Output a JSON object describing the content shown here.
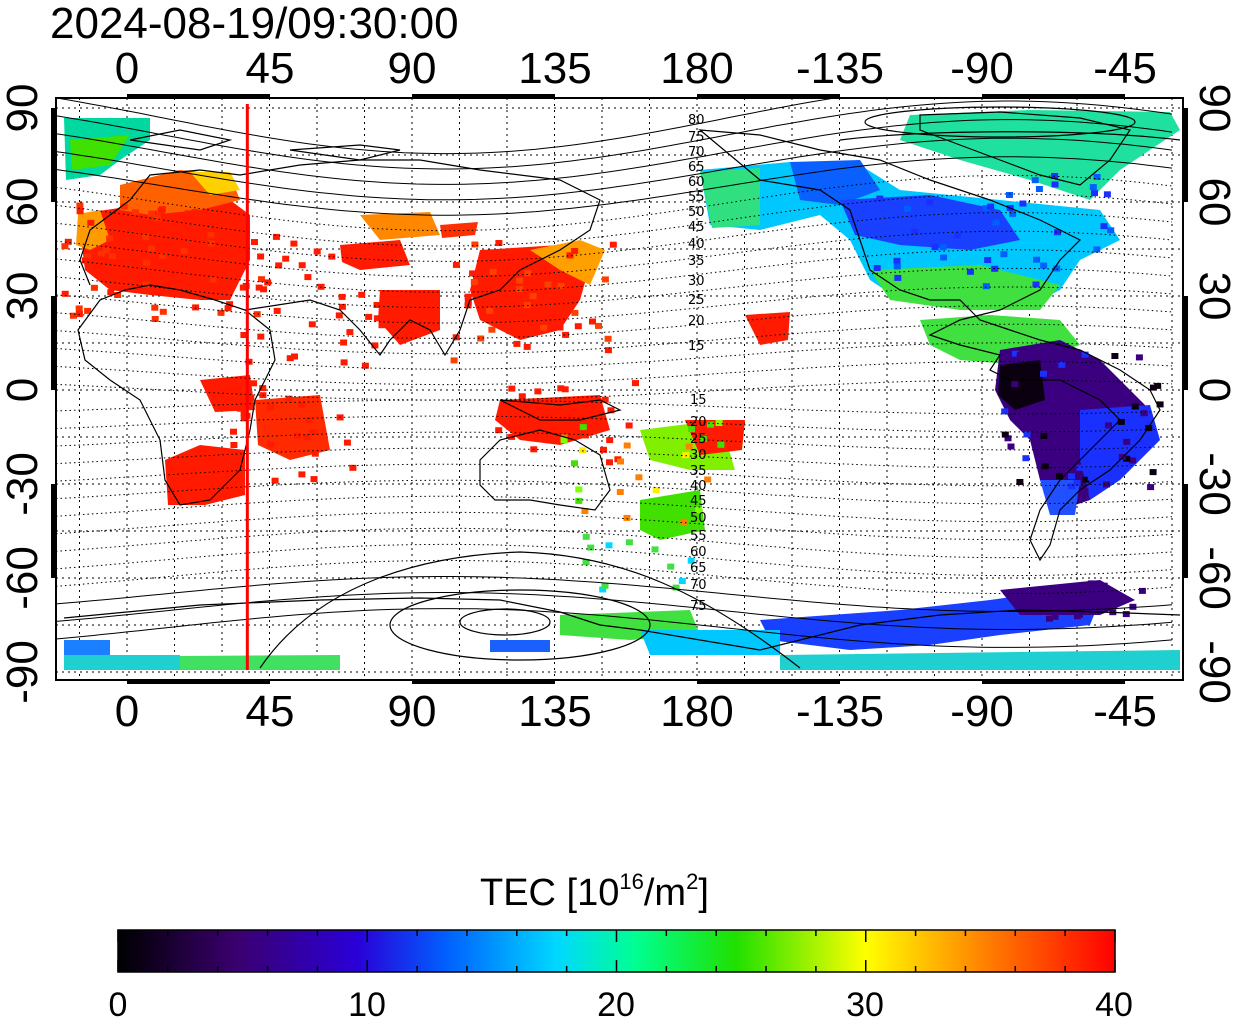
{
  "map": {
    "timestamp": "2024-08-19/09:30:00",
    "top_lon_labels": [
      "0",
      "45",
      "90",
      "135",
      "180",
      "-135",
      "-90",
      "-45"
    ],
    "bottom_lon_labels": [
      "0",
      "45",
      "90",
      "135",
      "180",
      "-135",
      "-90",
      "-45"
    ],
    "left_lat_labels": [
      "90",
      "60",
      "30",
      "0",
      "-30",
      "-60",
      "-90"
    ],
    "right_lat_labels": [
      "90",
      "60",
      "30",
      "0",
      "-30",
      "-60",
      "-90"
    ],
    "contour_labels_north": [
      "80",
      "75",
      "70",
      "65",
      "60",
      "55",
      "50",
      "45",
      "40",
      "35",
      "30",
      "25",
      "20",
      "15"
    ],
    "contour_labels_south": [
      "15",
      "20",
      "25",
      "30",
      "35",
      "40",
      "45",
      "50",
      "55",
      "60",
      "65",
      "70",
      "75"
    ],
    "marker_line_longitude": 38,
    "marker_line_color": "#ff0000"
  },
  "colorbar": {
    "title_prefix": "TEC  [10",
    "title_exp1": "16",
    "title_mid": "/m",
    "title_exp2": "2",
    "title_suffix": "]",
    "min": 0,
    "max": 40,
    "tick_labels": [
      "0",
      "10",
      "20",
      "30",
      "40"
    ],
    "colors": [
      "#000000",
      "#3a0070",
      "#2a00d8",
      "#0060ff",
      "#00d8ff",
      "#00ff80",
      "#20e000",
      "#ffff00",
      "#ff8000",
      "#ff0000"
    ]
  }
}
